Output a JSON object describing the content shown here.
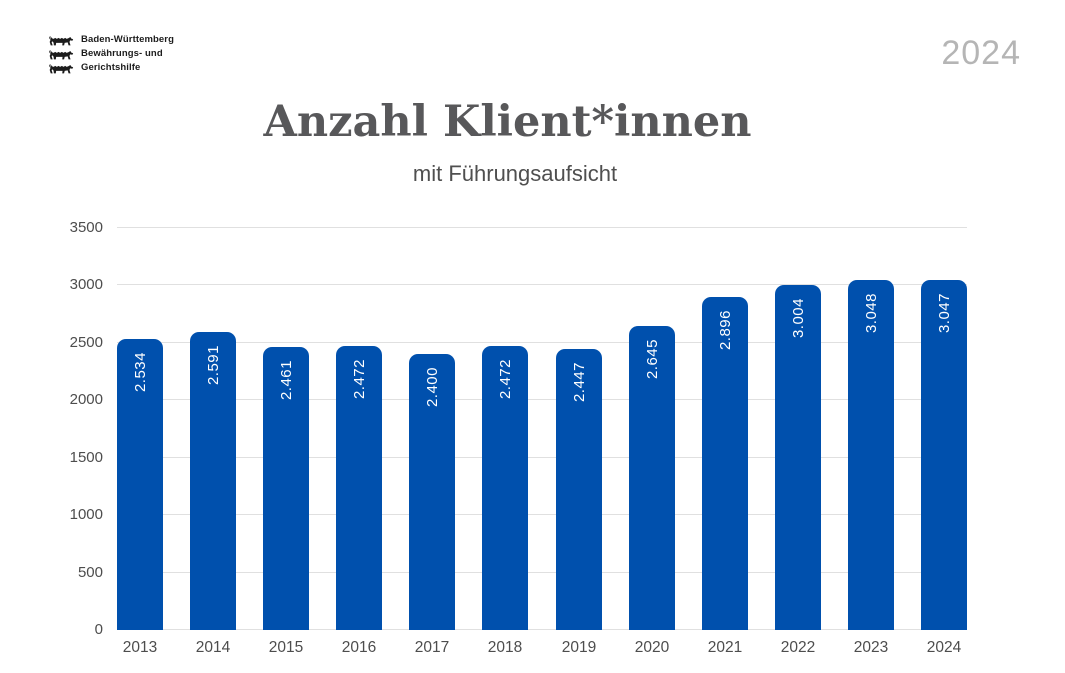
{
  "header": {
    "logo": {
      "icon": "three-lions",
      "lines": [
        "Baden-Württemberg",
        "Bewährungs- und",
        "Gerichtshilfe"
      ]
    },
    "year_badge": "2024"
  },
  "title": "Anzahl Klient*innen",
  "subtitle": "mit Führungsaufsicht",
  "chart_data": {
    "type": "bar",
    "title": "Anzahl Klient*innen",
    "subtitle": "mit Führungsaufsicht",
    "categories": [
      "2013",
      "2014",
      "2015",
      "2016",
      "2017",
      "2018",
      "2019",
      "2020",
      "2021",
      "2022",
      "2023",
      "2024"
    ],
    "values": [
      2534,
      2591,
      2461,
      2472,
      2400,
      2472,
      2447,
      2645,
      2896,
      3004,
      3048,
      3047
    ],
    "bar_labels": [
      "2.534",
      "2.591",
      "2.461",
      "2.472",
      "2.400",
      "2.472",
      "2.447",
      "2.645",
      "2.896",
      "3.004",
      "3.048",
      "3.047"
    ],
    "xlabel": "",
    "ylabel": "",
    "ylim": [
      0,
      3500
    ],
    "yticks": [
      0,
      500,
      1000,
      1500,
      2000,
      2500,
      3000,
      3500
    ],
    "grid": true,
    "legend": "none",
    "bar_color": "#0050ad",
    "bar_label_color": "#ffffff",
    "gridline_color": "#e0e0e0",
    "axis_text_color": "#4d4d4d"
  }
}
